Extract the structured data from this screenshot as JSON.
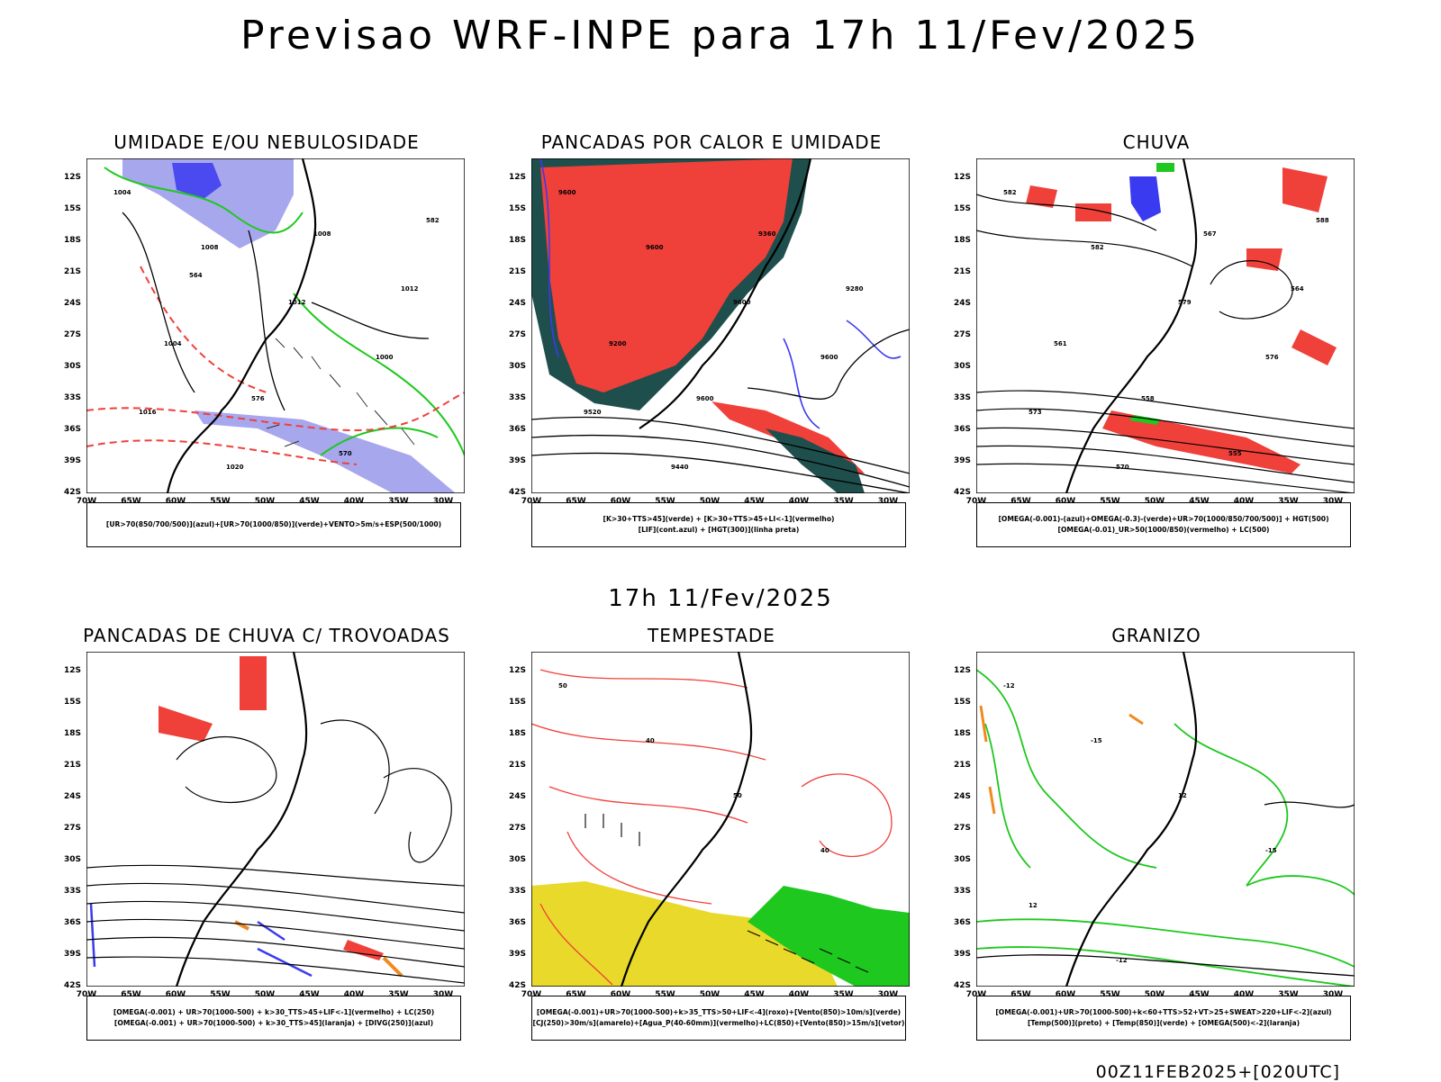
{
  "header": {
    "title": "Previsao WRF-INPE  para 17h 11/Fev/2025"
  },
  "mid_title": "17h 11/Fev/2025",
  "footer": "00Z11FEB2025+[020UTC]",
  "axes": {
    "lat_labels": [
      "12S",
      "15S",
      "18S",
      "21S",
      "24S",
      "27S",
      "30S",
      "33S",
      "36S",
      "39S",
      "42S"
    ],
    "lon_labels": [
      "70W",
      "65W",
      "60W",
      "55W",
      "50W",
      "45W",
      "40W",
      "35W",
      "30W"
    ]
  },
  "colors": {
    "red": "#f0403a",
    "green": "#1ec81e",
    "blue": "#3a3af0",
    "lavender": "#a7a7ee",
    "darkteal": "#1f4f4c",
    "yellow": "#e8d92a",
    "orange": "#f08a20",
    "black": "#000000"
  },
  "panels": [
    {
      "title": "UMIDADE E/OU NEBULOSIDADE",
      "legend": [
        "[UR>70(850/700/500)](azul)+[UR>70(1000/850)](verde)+VENTO>5m/s+ESP(500/1000)"
      ],
      "contour_labels": [
        "1004",
        "1008",
        "1012",
        "1000",
        "1016",
        "1020",
        "1008",
        "1012",
        "1004",
        "576",
        "570",
        "582",
        "564"
      ]
    },
    {
      "title": "PANCADAS POR CALOR E UMIDADE",
      "legend": [
        "[K>30+TTS>45](verde) + [K>30+TTS>45+LI<-1](vermelho)",
        "[LIF](cont.azul) + [HGT(300)](linha preta)"
      ],
      "contour_labels": [
        "9600",
        "9600",
        "9600",
        "9600",
        "9520",
        "9440",
        "9360",
        "9280",
        "9200",
        "9600"
      ]
    },
    {
      "title": "CHUVA",
      "legend": [
        "[OMEGA(-0.001)-(azul)+OMEGA(-0.3)-(verde)+UR>70(1000/850/700/500)] + HGT(500)",
        "[OMEGA(-0.01)_UR>50(1000/850)(vermelho) + LC(500)"
      ],
      "contour_labels": [
        "582",
        "582",
        "579",
        "576",
        "573",
        "570",
        "567",
        "564",
        "561",
        "558",
        "555",
        "588"
      ]
    },
    {
      "title": "PANCADAS DE CHUVA C/ TROVOADAS",
      "legend": [
        "[OMEGA(-0.001) + UR>70(1000-500) + k>30_TTS>45+LIF<-1](vermelho) + LC(250)",
        "[OMEGA(-0.001) + UR>70(1000-500) + k>30_TTS>45](laranja) + [DIVG(250)](azul)"
      ],
      "contour_labels": []
    },
    {
      "title": "TEMPESTADE",
      "legend": [
        "[OMEGA(-0.001)+UR>70(1000-500)+k>35_TTS>50+LIF<-4](roxo)+[Vento(850)>10m/s](verde)",
        "[CJ(250)>30m/s](amarelo)+[Agua_P(40-60mm)](vermelho)+LC(850)+[Vento(850)>15m/s](vetor)"
      ],
      "contour_labels": [
        "50",
        "40",
        "50",
        "40"
      ]
    },
    {
      "title": "GRANIZO",
      "legend": [
        "[OMEGA(-0.001)+UR>70(1000-500)+k<60+TTS>52+VT>25+SWEAT>220+LIF<-2](azul)",
        "[Temp(500)](preto) + [Temp(850)](verde) + [OMEGA(500)<-2](laranja)"
      ],
      "contour_labels": [
        "-12",
        "-15",
        "12",
        "-15",
        "12",
        "-12"
      ]
    }
  ]
}
